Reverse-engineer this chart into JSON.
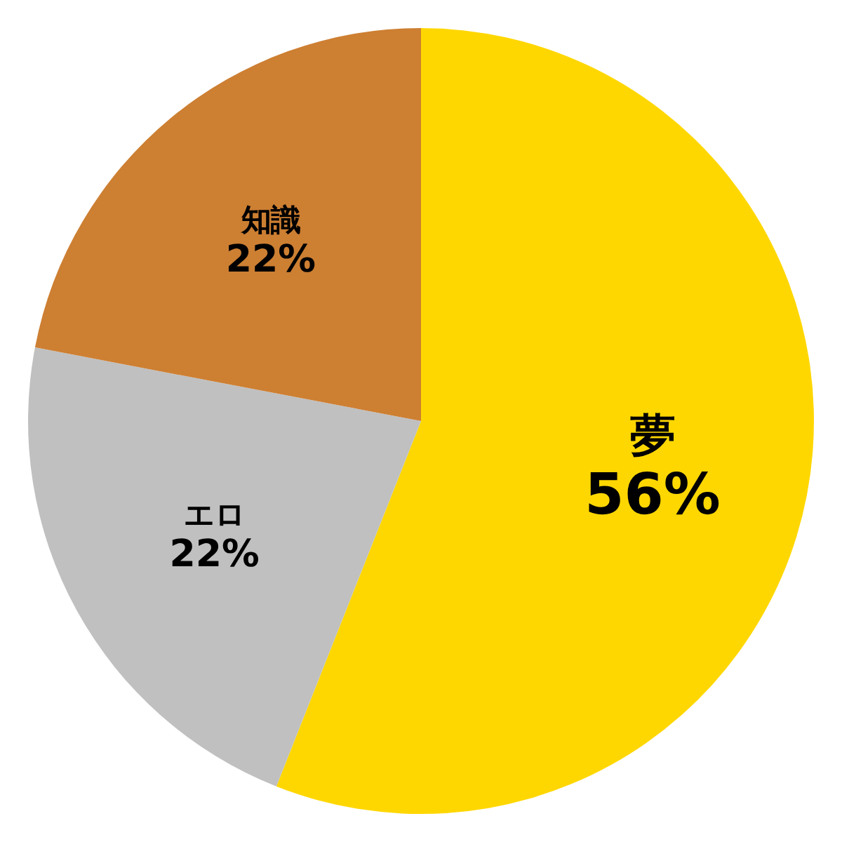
{
  "chart_data": {
    "type": "pie",
    "categories": [
      "夢",
      "エロ",
      "知識"
    ],
    "values": [
      56,
      22,
      22
    ],
    "colors": [
      "#ffd700",
      "#c0c0c0",
      "#cd7f32"
    ],
    "value_labels": [
      "56%",
      "22%",
      "22%"
    ],
    "legend": false
  }
}
